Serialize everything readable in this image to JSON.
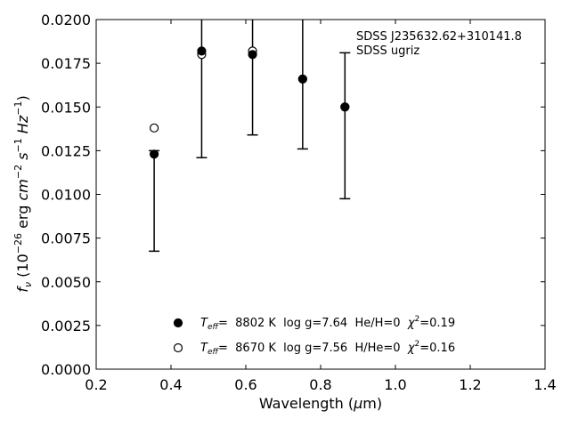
{
  "chart_data": {
    "type": "scatter",
    "xlabel_main": "Wavelength (",
    "xlabel_sym": "μ",
    "xlabel_unit": "m)",
    "ylabel": {
      "f": "f",
      "nu": "ν",
      "open": " (10",
      "exp1": "−26",
      "erg": " erg ",
      "cm": "cm",
      "exp2": "−2",
      "s": " s",
      "exp3": "−1",
      "hz": " Hz",
      "exp4": "−1",
      "close": ")"
    },
    "xlim": [
      0.2,
      1.4
    ],
    "ylim": [
      0.0,
      0.02
    ],
    "xticks": [
      0.2,
      0.4,
      0.6,
      0.8,
      1.0,
      1.2,
      1.4
    ],
    "xtick_labels": [
      "0.2",
      "0.4",
      "0.6",
      "0.8",
      "1.0",
      "1.2",
      "1.4"
    ],
    "yticks": [
      0.0,
      0.0025,
      0.005,
      0.0075,
      0.01,
      0.0125,
      0.015,
      0.0175,
      0.02
    ],
    "ytick_labels": [
      "0.0000",
      "0.0025",
      "0.0050",
      "0.0075",
      "0.0100",
      "0.0125",
      "0.0150",
      "0.0175",
      "0.0200"
    ],
    "annotation": [
      "SDSS J235632.62+310141.8",
      "SDSS ugriz"
    ],
    "observed": {
      "x": [
        0.355,
        0.482,
        0.618,
        0.752,
        0.865
      ],
      "y_low": [
        0.00675,
        0.0121,
        0.0134,
        0.0126,
        0.00975
      ],
      "y_high": [
        0.0125,
        0.0205,
        0.0205,
        0.0205,
        0.0181
      ]
    },
    "series": [
      {
        "marker": "filled",
        "x": [
          0.355,
          0.482,
          0.618,
          0.752,
          0.865
        ],
        "y": [
          0.0123,
          0.0182,
          0.018,
          0.0166,
          0.015
        ],
        "legend_label": {
          "T": "T",
          "sub": "eff",
          "rest": "=  8802 K  log g=7.64  He/H=0  ",
          "chi": "χ",
          "chi_exp": "2",
          "chi_val": "=0.19"
        }
      },
      {
        "marker": "open",
        "x": [
          0.355,
          0.482,
          0.618,
          0.752,
          0.865
        ],
        "y": [
          0.0138,
          0.018,
          0.0182,
          0.0166,
          0.015
        ],
        "legend_label": {
          "T": "T",
          "sub": "eff",
          "rest": "=  8670 K  log g=7.56  H/He=0  ",
          "chi": "χ",
          "chi_exp": "2",
          "chi_val": "=0.16"
        }
      }
    ],
    "grid": false,
    "legend_position": "lower center"
  }
}
